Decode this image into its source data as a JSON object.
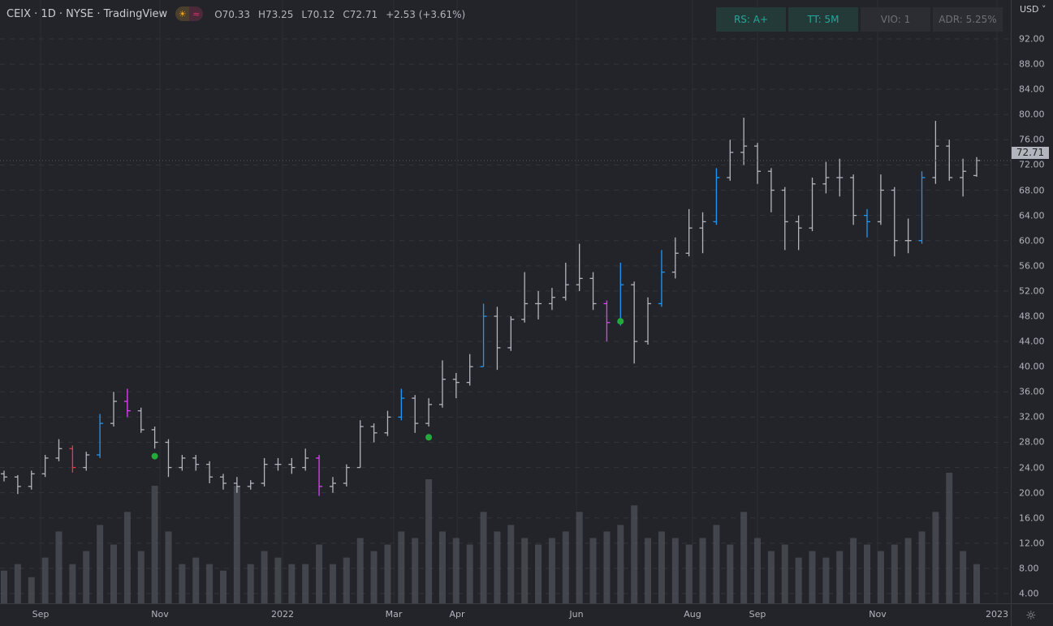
{
  "header": {
    "title": "CEIX · 1D · NYSE · TradingView",
    "icons": [
      "sun-icon",
      "approx-icon"
    ],
    "open": "O70.33",
    "high": "H73.25",
    "low": "L70.12",
    "close": "C72.71",
    "change": "+2.53 (+3.61%)"
  },
  "badges": [
    {
      "label": "RS: A+",
      "style": "green"
    },
    {
      "label": "TT: 5M",
      "style": "green"
    },
    {
      "label": "VIO: 1",
      "style": "neutral"
    },
    {
      "label": "ADR: 5.25%",
      "style": "neutral"
    }
  ],
  "currency": "USD",
  "last_price": "72.71",
  "chart_data": {
    "type": "ohlc",
    "title": "CEIX · 1D · NYSE · TradingView",
    "ylim": [
      4,
      92
    ],
    "y_ticks": [
      "92.00",
      "88.00",
      "84.00",
      "80.00",
      "76.00",
      "72.00",
      "68.00",
      "64.00",
      "60.00",
      "56.00",
      "52.00",
      "48.00",
      "44.00",
      "40.00",
      "36.00",
      "32.00",
      "28.00",
      "24.00",
      "20.00",
      "16.00",
      "12.00",
      "8.00",
      "4.00"
    ],
    "x_ticks": [
      "Sep",
      "Nov",
      "2022",
      "Mar",
      "Apr",
      "Jun",
      "Aug",
      "Sep",
      "Nov",
      "2023"
    ],
    "grid": true,
    "colors": {
      "bar": "#b2b5be",
      "blue": "#2196f3",
      "magenta": "#e040fb",
      "red": "#f23645",
      "marker": "#22ab3a",
      "volume": "#5d6068"
    },
    "ohlc": [
      [
        23,
        23.5,
        21.8,
        22.5
      ],
      [
        22.5,
        22.8,
        19.8,
        21
      ],
      [
        21,
        23.5,
        20.5,
        23
      ],
      [
        23,
        26,
        22.5,
        25.5
      ],
      [
        25.5,
        28.5,
        25,
        27
      ],
      [
        27,
        27.5,
        23.2,
        24
      ],
      [
        24,
        26.5,
        23.5,
        26
      ],
      [
        26,
        32.5,
        25.5,
        31
      ],
      [
        31,
        36,
        30.5,
        34.5
      ],
      [
        34.5,
        36.5,
        32,
        33
      ],
      [
        33,
        33.5,
        29.5,
        30
      ],
      [
        30,
        30.5,
        27,
        28
      ],
      [
        28,
        28.5,
        22.5,
        24
      ],
      [
        24,
        26,
        23.5,
        25.5
      ],
      [
        25.5,
        26,
        23.5,
        24.5
      ],
      [
        24.5,
        25,
        21.5,
        22.5
      ],
      [
        22.5,
        23,
        20.5,
        21.5
      ],
      [
        21.5,
        22.5,
        20,
        21
      ],
      [
        21,
        22,
        20.5,
        21.5
      ],
      [
        21.5,
        25.5,
        21,
        24.5
      ],
      [
        24.5,
        25.5,
        23.5,
        24.5
      ],
      [
        24.5,
        25.5,
        23,
        24
      ],
      [
        24,
        27,
        23.5,
        25.5
      ],
      [
        25.5,
        26,
        19.5,
        21
      ],
      [
        21,
        22.5,
        20,
        21.5
      ],
      [
        21.5,
        24.5,
        21,
        24
      ],
      [
        24,
        31.5,
        24,
        30.5
      ],
      [
        30.5,
        31,
        28,
        29.5
      ],
      [
        29.5,
        33,
        29,
        32
      ],
      [
        32,
        36.5,
        31.5,
        35
      ],
      [
        35,
        35.5,
        29.5,
        31
      ],
      [
        31,
        35,
        30.5,
        34
      ],
      [
        34,
        41,
        33.5,
        38
      ],
      [
        38,
        39,
        35,
        37.5
      ],
      [
        37.5,
        42,
        37,
        40
      ],
      [
        40,
        50,
        40,
        48
      ],
      [
        48,
        49.5,
        39.5,
        43
      ],
      [
        43,
        48,
        42.5,
        47.5
      ],
      [
        47.5,
        55,
        47,
        50
      ],
      [
        50,
        52,
        47.5,
        50
      ],
      [
        50,
        52.5,
        49,
        51
      ],
      [
        51,
        56.5,
        50.5,
        53
      ],
      [
        53,
        59.5,
        52,
        54
      ],
      [
        54,
        55,
        49,
        50
      ],
      [
        50,
        50.5,
        44,
        47
      ],
      [
        47,
        56.5,
        46.5,
        53
      ],
      [
        53,
        53.5,
        40.5,
        44
      ],
      [
        44,
        51,
        43.5,
        50
      ],
      [
        50,
        58.5,
        49.5,
        55
      ],
      [
        55,
        60.5,
        54,
        58
      ],
      [
        58,
        65,
        57.5,
        62
      ],
      [
        62,
        64.5,
        58,
        63
      ],
      [
        63,
        71.5,
        62.5,
        70
      ],
      [
        70,
        76,
        69.5,
        74
      ],
      [
        74,
        79.5,
        72,
        75
      ],
      [
        75,
        75.5,
        69,
        71
      ],
      [
        71,
        71.5,
        64.5,
        68
      ],
      [
        68,
        68.5,
        58.5,
        63
      ],
      [
        63,
        64,
        58.5,
        62
      ],
      [
        62,
        70,
        61.5,
        69
      ],
      [
        69,
        72.5,
        67.5,
        70
      ],
      [
        70,
        73,
        67,
        70
      ],
      [
        70,
        70.5,
        62.5,
        64
      ],
      [
        64,
        65,
        60.5,
        63
      ],
      [
        63,
        70.5,
        62.5,
        68
      ],
      [
        68,
        68.5,
        57.5,
        60
      ],
      [
        60,
        63.5,
        58,
        60
      ],
      [
        60,
        71,
        59.5,
        70
      ],
      [
        70,
        79,
        69,
        75
      ],
      [
        75,
        76,
        69.5,
        70
      ],
      [
        70,
        73,
        67,
        71
      ],
      [
        70.33,
        73.25,
        70.12,
        72.71
      ]
    ],
    "bar_colors": {
      "7": "blue",
      "29": "blue",
      "35": "blue",
      "45": "blue",
      "48": "blue",
      "52": "blue",
      "67": "blue",
      "9": "magenta",
      "23": "magenta",
      "44": "magenta",
      "5": "red",
      "63": "blue"
    },
    "markers": [
      {
        "bar": 11,
        "price": 25.8
      },
      {
        "bar": 31,
        "price": 28.8
      },
      {
        "bar": 45,
        "price": 47.2
      }
    ],
    "volume_relative": [
      0.25,
      0.3,
      0.2,
      0.35,
      0.55,
      0.3,
      0.4,
      0.6,
      0.45,
      0.7,
      0.4,
      0.9,
      0.55,
      0.3,
      0.35,
      0.3,
      0.25,
      0.9,
      0.3,
      0.4,
      0.35,
      0.3,
      0.3,
      0.45,
      0.3,
      0.35,
      0.5,
      0.4,
      0.45,
      0.55,
      0.5,
      0.95,
      0.55,
      0.5,
      0.45,
      0.7,
      0.55,
      0.6,
      0.5,
      0.45,
      0.5,
      0.55,
      0.7,
      0.5,
      0.55,
      0.6,
      0.75,
      0.5,
      0.55,
      0.5,
      0.45,
      0.5,
      0.6,
      0.45,
      0.7,
      0.5,
      0.4,
      0.45,
      0.35,
      0.4,
      0.35,
      0.4,
      0.5,
      0.45,
      0.4,
      0.45,
      0.5,
      0.55,
      0.7,
      1.0,
      0.4,
      0.3
    ]
  }
}
